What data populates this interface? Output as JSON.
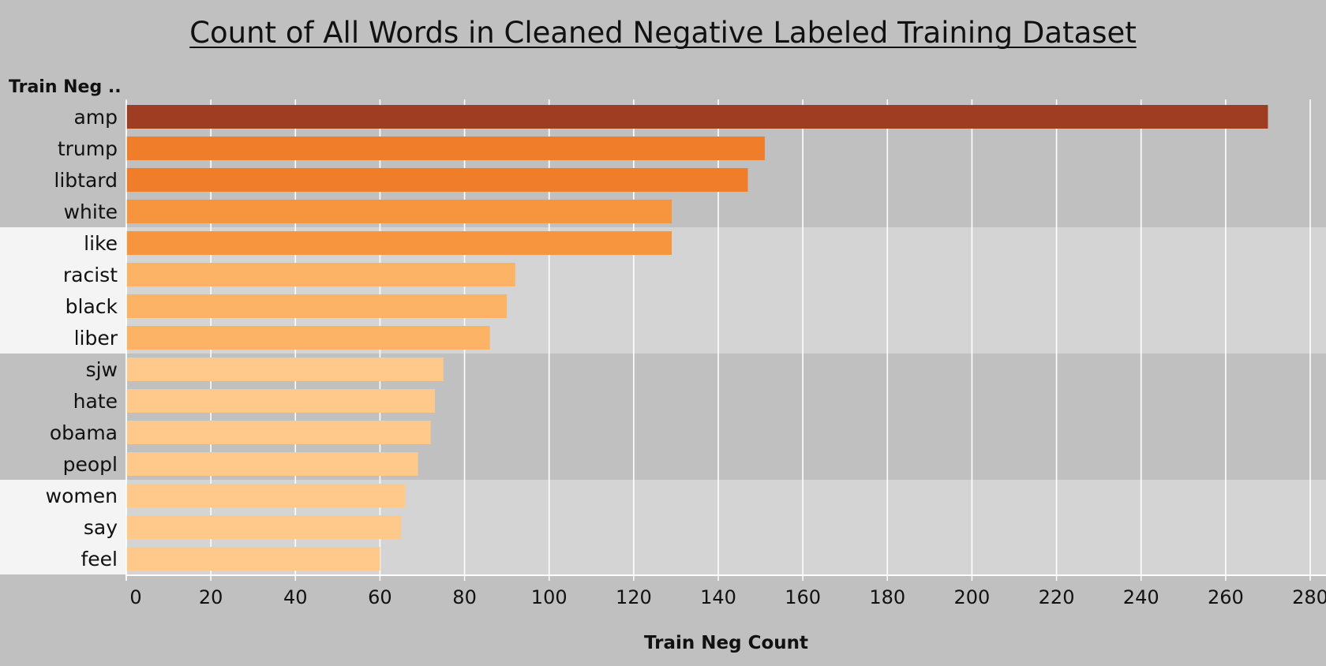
{
  "chart_data": {
    "type": "bar",
    "orientation": "horizontal",
    "title": "Count of All Words in Cleaned Negative Labeled Training Dataset",
    "row_header": "Train Neg ..",
    "xlabel": "Train Neg Count",
    "xlim": [
      0,
      280
    ],
    "x_ticks": [
      0,
      20,
      40,
      60,
      80,
      100,
      120,
      140,
      160,
      180,
      200,
      220,
      240,
      260,
      280
    ],
    "grid": true,
    "categories": [
      "amp",
      "trump",
      "libtard",
      "white",
      "like",
      "racist",
      "black",
      "liber",
      "sjw",
      "hate",
      "obama",
      "peopl",
      "women",
      "say",
      "feel"
    ],
    "values": [
      270,
      151,
      147,
      129,
      129,
      92,
      90,
      86,
      75,
      73,
      72,
      69,
      66,
      65,
      60
    ],
    "colors": {
      "background": "#c0c0c0",
      "band_light_plot": "#d4d4d4",
      "band_light_label": "#f4f4f4",
      "gridline": "#ffffff",
      "text": "#111111",
      "bar_scale": [
        "#ffc98c",
        "#fdb366",
        "#f6953d",
        "#f07d2a",
        "#9e3d22"
      ]
    }
  }
}
